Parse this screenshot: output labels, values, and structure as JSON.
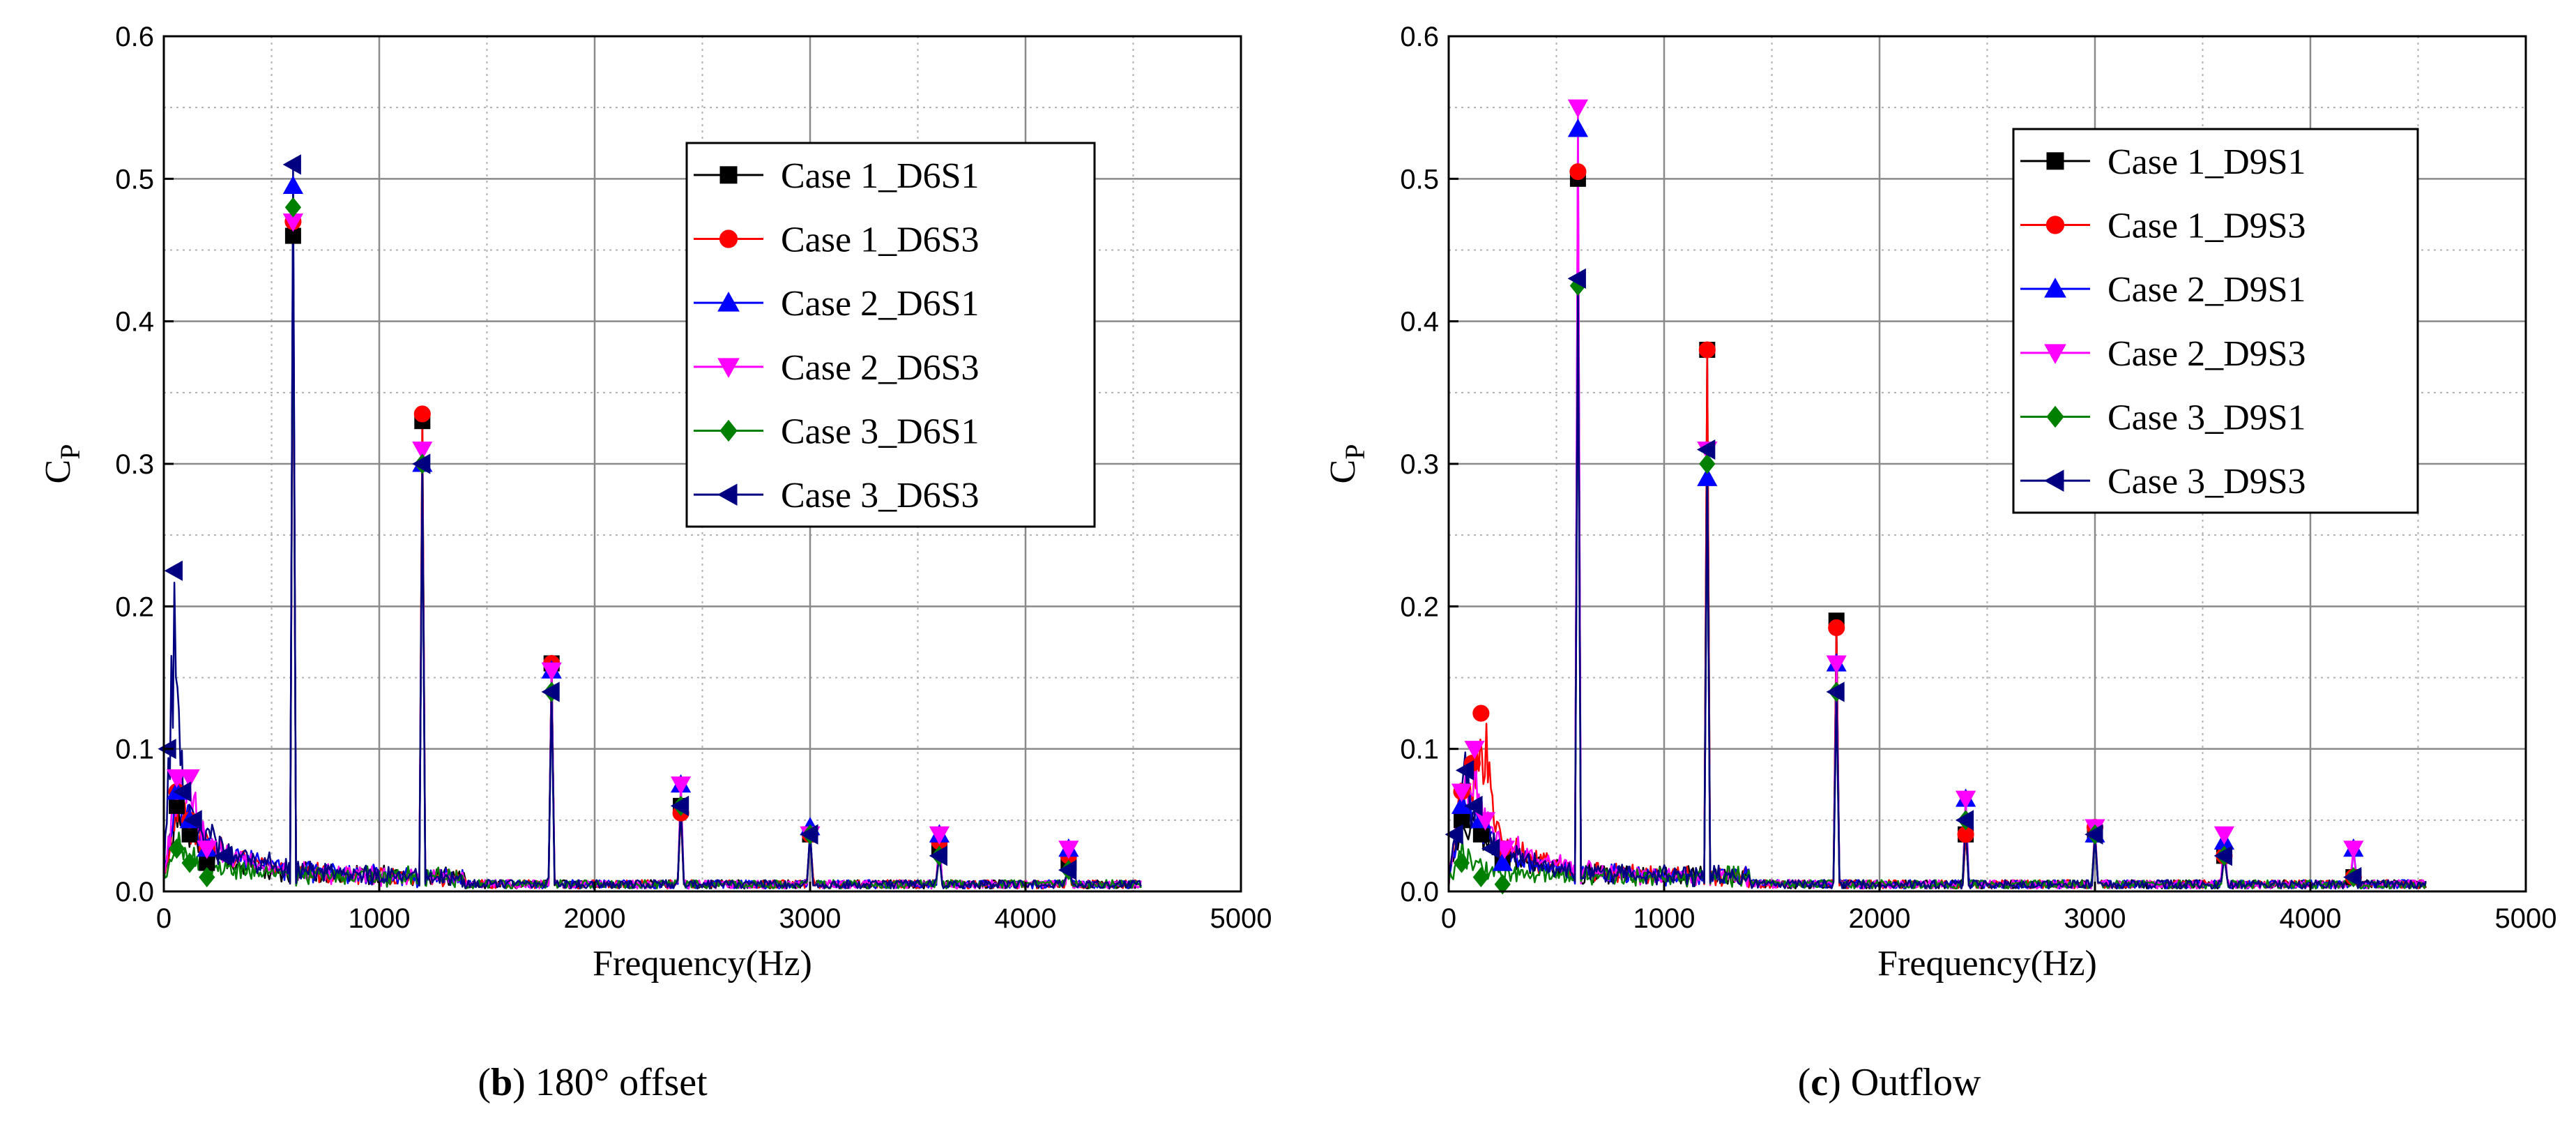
{
  "figure": {
    "captions": [
      {
        "letter": "b",
        "text": " 180° offset"
      },
      {
        "letter": "c",
        "text": " Outflow"
      }
    ]
  },
  "chart_data": [
    {
      "type": "line",
      "panel": "b",
      "title": "180° offset",
      "xlabel": "Frequency(Hz)",
      "ylabel_main": "C",
      "ylabel_sub": "P",
      "xlim": [
        0,
        5000
      ],
      "ylim": [
        0,
        0.6
      ],
      "xticks": [
        0,
        1000,
        2000,
        3000,
        4000,
        5000
      ],
      "xtick_labels": [
        "0",
        "1000",
        "2000",
        "3000",
        "4000",
        "5000"
      ],
      "yticks": [
        0.0,
        0.1,
        0.2,
        0.3,
        0.4,
        0.5,
        0.6
      ],
      "ytick_labels": [
        "0.0",
        "0.1",
        "0.2",
        "0.3",
        "0.4",
        "0.5",
        "0.6"
      ],
      "grid": true,
      "legend_position": "top-right",
      "harmonics_hz": [
        600,
        1200,
        1800,
        2400,
        3000,
        3600,
        4200
      ],
      "series": [
        {
          "name": "Case 1_D6S1",
          "color": "#000000",
          "marker": "square",
          "low_freq": [
            [
              60,
              0.06
            ],
            [
              120,
              0.04
            ],
            [
              200,
              0.02
            ]
          ],
          "peaks": [
            0.46,
            0.33,
            0.16,
            0.06,
            0.04,
            0.03,
            0.02
          ]
        },
        {
          "name": "Case 1_D6S3",
          "color": "#ff0000",
          "marker": "circle",
          "low_freq": [
            [
              60,
              0.07
            ],
            [
              120,
              0.05
            ],
            [
              200,
              0.03
            ]
          ],
          "peaks": [
            0.47,
            0.335,
            0.16,
            0.055,
            0.04,
            0.035,
            0.025
          ]
        },
        {
          "name": "Case 2_D6S1",
          "color": "#0000ff",
          "marker": "triangle-up",
          "low_freq": [
            [
              60,
              0.07
            ],
            [
              120,
              0.05
            ],
            [
              200,
              0.03
            ]
          ],
          "peaks": [
            0.495,
            0.3,
            0.155,
            0.075,
            0.045,
            0.04,
            0.03
          ]
        },
        {
          "name": "Case 2_D6S3",
          "color": "#ff00ff",
          "marker": "triangle-down",
          "low_freq": [
            [
              60,
              0.08
            ],
            [
              120,
              0.08
            ],
            [
              200,
              0.03
            ]
          ],
          "peaks": [
            0.47,
            0.31,
            0.155,
            0.075,
            0.04,
            0.04,
            0.03
          ]
        },
        {
          "name": "Case 3_D6S1",
          "color": "#008000",
          "marker": "diamond",
          "low_freq": [
            [
              60,
              0.03
            ],
            [
              120,
              0.02
            ],
            [
              200,
              0.01
            ]
          ],
          "peaks": [
            0.48,
            0.3,
            0.14,
            0.06,
            0.04,
            0.025,
            0.015
          ]
        },
        {
          "name": "Case 3_D6S3",
          "color": "#000080",
          "marker": "triangle-left",
          "low_freq": [
            [
              20,
              0.1
            ],
            [
              50,
              0.225
            ],
            [
              90,
              0.07
            ],
            [
              140,
              0.05
            ],
            [
              280,
              0.025
            ]
          ],
          "peaks": [
            0.51,
            0.3,
            0.14,
            0.06,
            0.04,
            0.025,
            0.015
          ]
        }
      ]
    },
    {
      "type": "line",
      "panel": "c",
      "title": "Outflow",
      "xlabel": "Frequency(Hz)",
      "ylabel_main": "C",
      "ylabel_sub": "P",
      "xlim": [
        0,
        5000
      ],
      "ylim": [
        0,
        0.6
      ],
      "xticks": [
        0,
        1000,
        2000,
        3000,
        4000,
        5000
      ],
      "xtick_labels": [
        "0",
        "1000",
        "2000",
        "3000",
        "4000",
        "5000"
      ],
      "yticks": [
        0.0,
        0.1,
        0.2,
        0.3,
        0.4,
        0.5,
        0.6
      ],
      "ytick_labels": [
        "0.0",
        "0.1",
        "0.2",
        "0.3",
        "0.4",
        "0.5",
        "0.6"
      ],
      "grid": true,
      "legend_position": "top-right",
      "harmonics_hz": [
        600,
        1200,
        1800,
        2400,
        3000,
        3600,
        4200
      ],
      "series": [
        {
          "name": "Case 1_D9S1",
          "color": "#000000",
          "marker": "square",
          "low_freq": [
            [
              60,
              0.05
            ],
            [
              150,
              0.04
            ],
            [
              250,
              0.02
            ]
          ],
          "peaks": [
            0.5,
            0.38,
            0.19,
            0.04,
            0.04,
            0.025,
            0.01
          ]
        },
        {
          "name": "Case 1_D9S3",
          "color": "#ff0000",
          "marker": "circle",
          "low_freq": [
            [
              60,
              0.07
            ],
            [
              110,
              0.09
            ],
            [
              150,
              0.125
            ],
            [
              250,
              0.03
            ]
          ],
          "peaks": [
            0.505,
            0.38,
            0.185,
            0.04,
            0.045,
            0.025,
            0.01
          ]
        },
        {
          "name": "Case 2_D9S1",
          "color": "#0000ff",
          "marker": "triangle-up",
          "low_freq": [
            [
              60,
              0.06
            ],
            [
              150,
              0.05
            ],
            [
              250,
              0.02
            ]
          ],
          "peaks": [
            0.535,
            0.29,
            0.16,
            0.065,
            0.04,
            0.035,
            0.03
          ]
        },
        {
          "name": "Case 2_D9S3",
          "color": "#ff00ff",
          "marker": "triangle-down",
          "low_freq": [
            [
              60,
              0.07
            ],
            [
              120,
              0.1
            ],
            [
              170,
              0.05
            ],
            [
              260,
              0.03
            ]
          ],
          "peaks": [
            0.55,
            0.31,
            0.16,
            0.065,
            0.045,
            0.04,
            0.03
          ]
        },
        {
          "name": "Case 3_D9S1",
          "color": "#008000",
          "marker": "diamond",
          "low_freq": [
            [
              60,
              0.02
            ],
            [
              150,
              0.01
            ],
            [
              250,
              0.005
            ]
          ],
          "peaks": [
            0.425,
            0.3,
            0.14,
            0.05,
            0.04,
            0.025,
            0.01
          ]
        },
        {
          "name": "Case 3_D9S3",
          "color": "#000080",
          "marker": "triangle-left",
          "low_freq": [
            [
              30,
              0.04
            ],
            [
              80,
              0.085
            ],
            [
              120,
              0.06
            ],
            [
              200,
              0.03
            ]
          ],
          "peaks": [
            0.43,
            0.31,
            0.14,
            0.05,
            0.04,
            0.025,
            0.01
          ]
        }
      ]
    }
  ]
}
